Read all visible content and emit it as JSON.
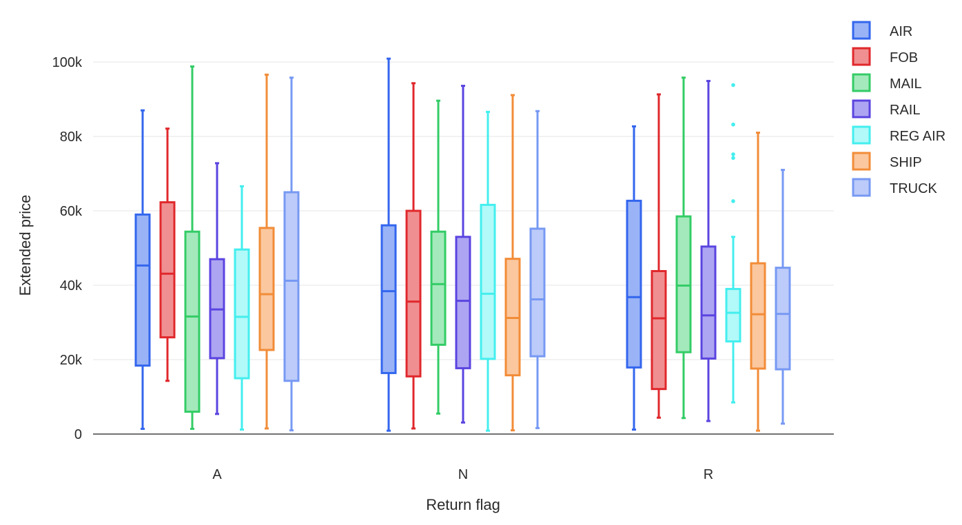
{
  "chart_data": {
    "type": "box",
    "title": "",
    "xlabel": "Return flag",
    "ylabel": "Extended price",
    "categories": [
      "A",
      "N",
      "R"
    ],
    "ylim": [
      0,
      100000
    ],
    "yticks": [
      0,
      20000,
      40000,
      60000,
      80000,
      100000
    ],
    "ytick_labels": [
      "0",
      "20k",
      "40k",
      "60k",
      "80k",
      "100k"
    ],
    "grid": true,
    "legend_position": "top-right",
    "series": [
      {
        "name": "AIR",
        "color": "#3366ee",
        "fill": "#99b3f6",
        "boxes": [
          {
            "min": 1400,
            "q1": 18400,
            "median": 45300,
            "q3": 59000,
            "max": 87000,
            "outliers": []
          },
          {
            "min": 900,
            "q1": 16400,
            "median": 38400,
            "q3": 56100,
            "max": 100900,
            "outliers": []
          },
          {
            "min": 1200,
            "q1": 17900,
            "median": 36800,
            "q3": 62700,
            "max": 82700,
            "outliers": []
          }
        ]
      },
      {
        "name": "FOB",
        "color": "#e0282c",
        "fill": "#f08f91",
        "boxes": [
          {
            "min": 14300,
            "q1": 26000,
            "median": 43100,
            "q3": 62300,
            "max": 82100,
            "outliers": []
          },
          {
            "min": 1500,
            "q1": 15500,
            "median": 35600,
            "q3": 60000,
            "max": 94300,
            "outliers": []
          },
          {
            "min": 4400,
            "q1": 12100,
            "median": 31100,
            "q3": 43800,
            "max": 91300,
            "outliers": []
          }
        ]
      },
      {
        "name": "MAIL",
        "color": "#33cc66",
        "fill": "#a3e9bb",
        "boxes": [
          {
            "min": 1400,
            "q1": 6000,
            "median": 31600,
            "q3": 54400,
            "max": 98800,
            "outliers": []
          },
          {
            "min": 5500,
            "q1": 24000,
            "median": 40300,
            "q3": 54400,
            "max": 89600,
            "outliers": []
          },
          {
            "min": 4300,
            "q1": 22000,
            "median": 39900,
            "q3": 58500,
            "max": 95800,
            "outliers": []
          }
        ]
      },
      {
        "name": "RAIL",
        "color": "#5a44e0",
        "fill": "#aea5f2",
        "boxes": [
          {
            "min": 5400,
            "q1": 20400,
            "median": 33500,
            "q3": 47000,
            "max": 72800,
            "outliers": []
          },
          {
            "min": 3100,
            "q1": 17700,
            "median": 35800,
            "q3": 53000,
            "max": 93600,
            "outliers": []
          },
          {
            "min": 3500,
            "q1": 20300,
            "median": 31900,
            "q3": 50400,
            "max": 94900,
            "outliers": []
          }
        ]
      },
      {
        "name": "REG AIR",
        "color": "#44eeee",
        "fill": "#b2f9f9",
        "boxes": [
          {
            "min": 1200,
            "q1": 15000,
            "median": 31500,
            "q3": 49600,
            "max": 66600,
            "outliers": []
          },
          {
            "min": 900,
            "q1": 20200,
            "median": 37700,
            "q3": 61600,
            "max": 86600,
            "outliers": []
          },
          {
            "min": 8500,
            "q1": 24900,
            "median": 32600,
            "q3": 39000,
            "max": 53000,
            "outliers": [
              62600,
              74200,
              75200,
              83200,
              93800
            ]
          }
        ]
      },
      {
        "name": "SHIP",
        "color": "#f28c38",
        "fill": "#fbc79e",
        "boxes": [
          {
            "min": 1500,
            "q1": 22600,
            "median": 37600,
            "q3": 55400,
            "max": 96600,
            "outliers": []
          },
          {
            "min": 1000,
            "q1": 15800,
            "median": 31200,
            "q3": 47100,
            "max": 91100,
            "outliers": []
          },
          {
            "min": 900,
            "q1": 17600,
            "median": 32200,
            "q3": 45900,
            "max": 81000,
            "outliers": []
          }
        ]
      },
      {
        "name": "TRUCK",
        "color": "#7799f3",
        "fill": "#bccbf9",
        "boxes": [
          {
            "min": 1000,
            "q1": 14300,
            "median": 41200,
            "q3": 65000,
            "max": 95800,
            "outliers": []
          },
          {
            "min": 1600,
            "q1": 20900,
            "median": 36200,
            "q3": 55200,
            "max": 86800,
            "outliers": []
          },
          {
            "min": 2800,
            "q1": 17400,
            "median": 32300,
            "q3": 44700,
            "max": 71000,
            "outliers": []
          }
        ]
      }
    ]
  }
}
